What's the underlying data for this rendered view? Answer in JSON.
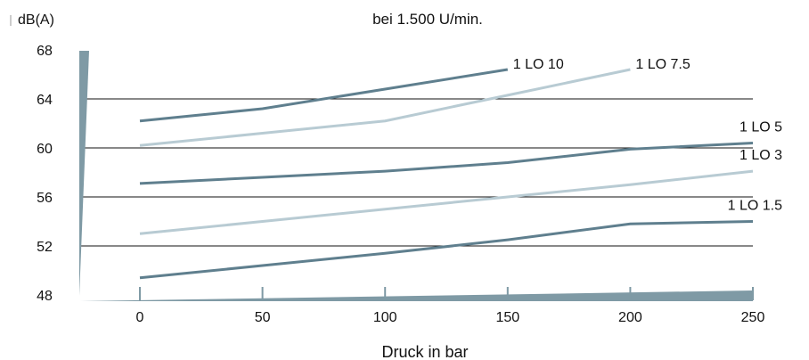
{
  "chart_data": {
    "type": "line",
    "title": "bei 1.500 U/min.",
    "ylabel": "dB(A)",
    "xlabel": "Druck in bar",
    "x": [
      0,
      50,
      100,
      150,
      200,
      250
    ],
    "xticks": [
      "0",
      "50",
      "100",
      "150",
      "200",
      "250"
    ],
    "yticks": [
      "48",
      "52",
      "56",
      "60",
      "64",
      "68"
    ],
    "ylim": [
      48,
      68
    ],
    "xlim": [
      0,
      250
    ],
    "grid": "horizontal",
    "series": [
      {
        "name": "1 LO 10",
        "color": "#5f7f8e",
        "x": [
          0,
          50,
          100,
          150
        ],
        "values": [
          62.2,
          63.2,
          64.8,
          66.4
        ]
      },
      {
        "name": "1 LO 7.5",
        "color": "#b8cbd3",
        "x": [
          0,
          50,
          100,
          150,
          200
        ],
        "values": [
          60.2,
          61.2,
          62.2,
          64.3,
          66.4
        ]
      },
      {
        "name": "1 LO 5",
        "color": "#5f7f8e",
        "x": [
          0,
          50,
          100,
          150,
          200,
          250
        ],
        "values": [
          57.1,
          57.6,
          58.1,
          58.8,
          59.9,
          60.4
        ]
      },
      {
        "name": "1 LO 3",
        "color": "#b8cbd3",
        "x": [
          0,
          50,
          100,
          150,
          200,
          250
        ],
        "values": [
          53.0,
          54.0,
          55.0,
          56.0,
          57.0,
          58.1
        ]
      },
      {
        "name": "1 LO 1.5",
        "color": "#5f7f8e",
        "x": [
          0,
          50,
          100,
          150,
          200,
          250
        ],
        "values": [
          49.4,
          50.4,
          51.4,
          52.5,
          53.8,
          54.0
        ]
      }
    ],
    "axis_color": "#7f9aa5"
  }
}
